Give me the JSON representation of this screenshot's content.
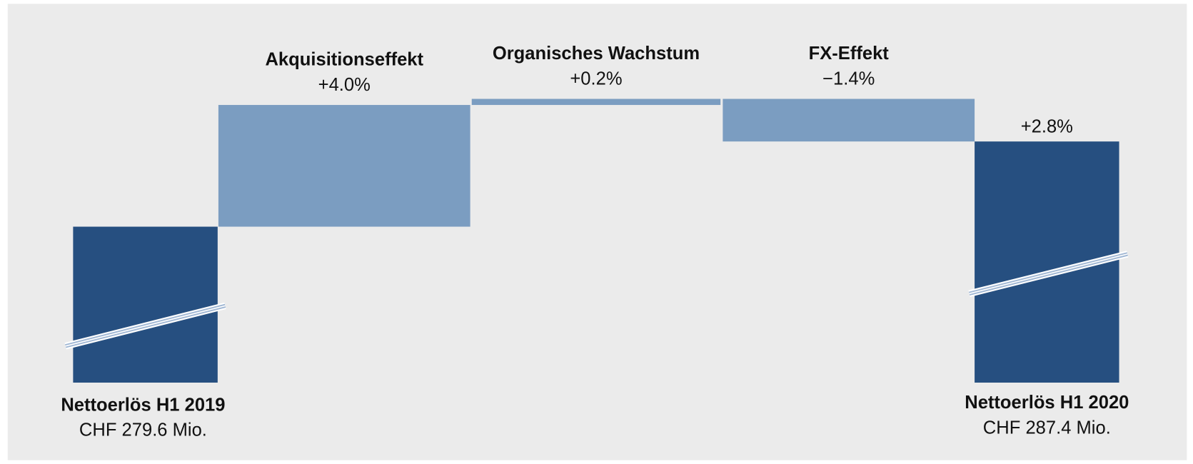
{
  "chart_data": {
    "type": "waterfall",
    "start": {
      "label": "Nettoerlös H1 2019",
      "value": 279.6,
      "value_label": "CHF 279.6 Mio."
    },
    "steps": [
      {
        "name": "Akquisitionseffekt",
        "value": 4.0,
        "value_label": "+4.0%"
      },
      {
        "name": "Organisches Wachstum",
        "value": 0.2,
        "value_label": "+0.2%"
      },
      {
        "name": "FX-Effekt",
        "value": -1.4,
        "value_label": "−1.4%"
      }
    ],
    "end": {
      "label": "Nettoerlös H1 2020",
      "value": 287.4,
      "value_label": "CHF 287.4 Mio.",
      "change": 2.8,
      "change_label": "+2.8%"
    },
    "colors": {
      "total": "#264f80",
      "step": "#7b9dc1"
    }
  }
}
